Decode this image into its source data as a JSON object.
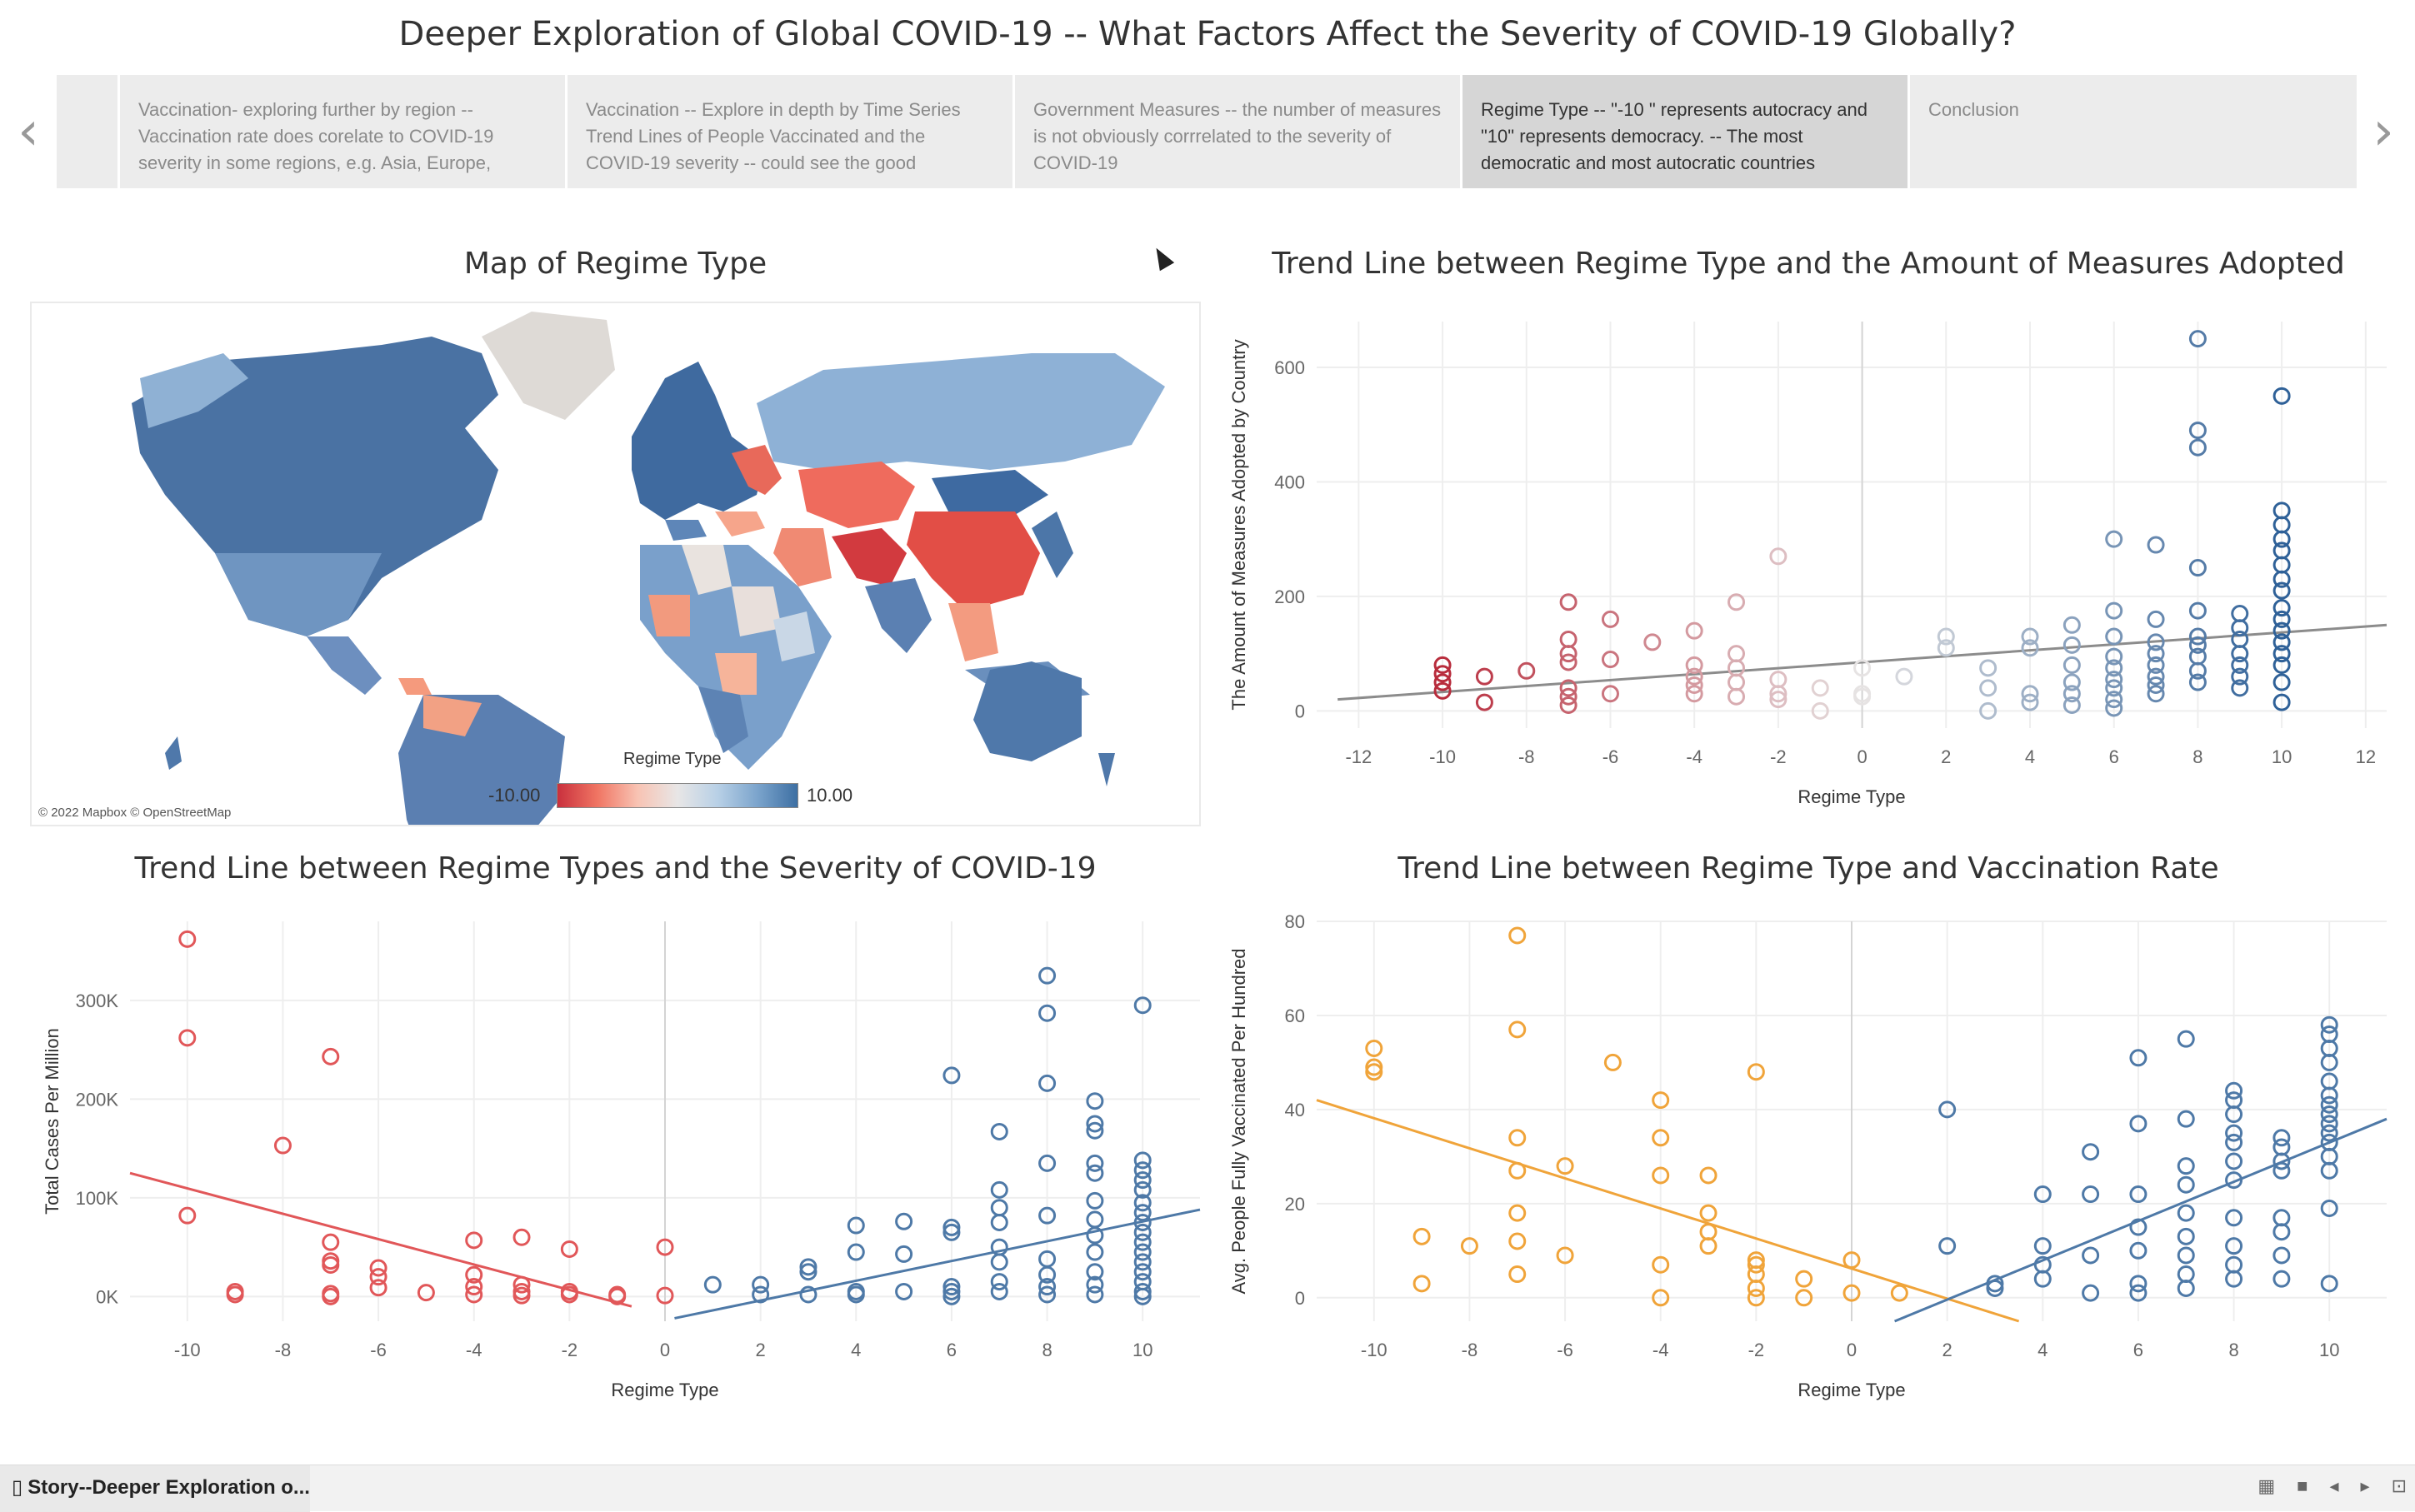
{
  "title": "Deeper Exploration of Global COVID-19 -- What Factors Affect the Severity of COVID-19 Globally?",
  "story": {
    "prev_icon": "chevron-left-icon",
    "next_icon": "chevron-right-icon",
    "prev_glyph": "‹",
    "next_glyph": "›",
    "points": [
      {
        "text": ""
      },
      {
        "text": "Vaccination- exploring further by region -- Vaccination rate does corelate to COVID-19 severity in some regions, e.g. Asia, Europe,"
      },
      {
        "text": "Vaccination -- Explore in depth by Time Series Trend Lines of People Vaccinated and the COVID-19 severity -- could see the good"
      },
      {
        "text": "Government Measures -- the number of measures is not obviously corrrelated to the severity of COVID-19"
      },
      {
        "text": "Regime Type -- \"-10 \" represents autocracy and \"10\" represents democracy. -- The most democratic and most autocratic countries"
      },
      {
        "text": "Conclusion"
      }
    ],
    "active_index": 4
  },
  "map": {
    "title": "Map of Regime Type",
    "credit": "© 2022 Mapbox © OpenStreetMap",
    "legend_title": "Regime Type",
    "legend_min": "-10.00",
    "legend_max": "10.00",
    "colors": {
      "low": "#c9303d",
      "mid": "#e8e6e6",
      "high": "#3d6fa3"
    }
  },
  "colors": {
    "blue": "#4e79a7",
    "red": "#e15759",
    "dark_red": "#b82c3c",
    "orange": "#f0a43a",
    "grid": "#ececec",
    "trend_gray": "#8c8c8c"
  },
  "bottom": {
    "tab_label": "Story--Deeper Exploration o...",
    "tab_icon": "book-icon"
  },
  "chart_data": [
    {
      "type": "scatter",
      "title": "Trend Line between Regime Type and the Amount of Measures Adopted",
      "xlabel": "Regime Type",
      "ylabel": "The Amount of Measures Adopted by Country",
      "xlim": [
        -13,
        12.5
      ],
      "ylim": [
        -30,
        680
      ],
      "xticks": [
        -12,
        -10,
        -8,
        -6,
        -4,
        -2,
        0,
        2,
        4,
        6,
        8,
        10,
        12
      ],
      "yticks": [
        0,
        200,
        400,
        600
      ],
      "ytick_labels": [
        "0",
        "200",
        "400",
        "600"
      ],
      "color_mode": "diverging",
      "trend": [
        {
          "x1": -12.5,
          "y1": 20,
          "x2": 12.5,
          "y2": 150,
          "color": "#8c8c8c"
        }
      ],
      "points": [
        [
          -10,
          80
        ],
        [
          -10,
          65
        ],
        [
          -10,
          50
        ],
        [
          -10,
          35
        ],
        [
          -9,
          60
        ],
        [
          -9,
          15
        ],
        [
          -8,
          70
        ],
        [
          -7,
          190
        ],
        [
          -7,
          125
        ],
        [
          -7,
          100
        ],
        [
          -7,
          85
        ],
        [
          -7,
          40
        ],
        [
          -7,
          25
        ],
        [
          -7,
          10
        ],
        [
          -6,
          160
        ],
        [
          -6,
          90
        ],
        [
          -6,
          30
        ],
        [
          -5,
          120
        ],
        [
          -4,
          140
        ],
        [
          -4,
          80
        ],
        [
          -4,
          60
        ],
        [
          -4,
          45
        ],
        [
          -4,
          30
        ],
        [
          -3,
          190
        ],
        [
          -3,
          100
        ],
        [
          -3,
          75
        ],
        [
          -3,
          50
        ],
        [
          -3,
          25
        ],
        [
          -2,
          270
        ],
        [
          -2,
          55
        ],
        [
          -2,
          30
        ],
        [
          -2,
          20
        ],
        [
          -1,
          40
        ],
        [
          -1,
          0
        ],
        [
          0,
          75
        ],
        [
          0,
          30
        ],
        [
          0,
          25
        ],
        [
          1,
          60
        ],
        [
          2,
          130
        ],
        [
          2,
          110
        ],
        [
          3,
          75
        ],
        [
          3,
          40
        ],
        [
          3,
          0
        ],
        [
          4,
          130
        ],
        [
          4,
          110
        ],
        [
          4,
          30
        ],
        [
          4,
          15
        ],
        [
          5,
          150
        ],
        [
          5,
          115
        ],
        [
          5,
          80
        ],
        [
          5,
          50
        ],
        [
          5,
          30
        ],
        [
          5,
          10
        ],
        [
          6,
          300
        ],
        [
          6,
          175
        ],
        [
          6,
          130
        ],
        [
          6,
          95
        ],
        [
          6,
          75
        ],
        [
          6,
          55
        ],
        [
          6,
          40
        ],
        [
          6,
          20
        ],
        [
          6,
          5
        ],
        [
          7,
          290
        ],
        [
          7,
          160
        ],
        [
          7,
          120
        ],
        [
          7,
          100
        ],
        [
          7,
          80
        ],
        [
          7,
          60
        ],
        [
          7,
          45
        ],
        [
          7,
          30
        ],
        [
          8,
          650
        ],
        [
          8,
          490
        ],
        [
          8,
          460
        ],
        [
          8,
          250
        ],
        [
          8,
          175
        ],
        [
          8,
          130
        ],
        [
          8,
          115
        ],
        [
          8,
          95
        ],
        [
          8,
          70
        ],
        [
          8,
          50
        ],
        [
          9,
          170
        ],
        [
          9,
          145
        ],
        [
          9,
          125
        ],
        [
          9,
          100
        ],
        [
          9,
          80
        ],
        [
          9,
          60
        ],
        [
          9,
          40
        ],
        [
          10,
          550
        ],
        [
          10,
          350
        ],
        [
          10,
          325
        ],
        [
          10,
          300
        ],
        [
          10,
          280
        ],
        [
          10,
          255
        ],
        [
          10,
          230
        ],
        [
          10,
          210
        ],
        [
          10,
          180
        ],
        [
          10,
          160
        ],
        [
          10,
          140
        ],
        [
          10,
          120
        ],
        [
          10,
          100
        ],
        [
          10,
          80
        ],
        [
          10,
          50
        ],
        [
          10,
          15
        ]
      ]
    },
    {
      "type": "scatter",
      "title": "Trend Line between Regime Types and the Severity of COVID-19",
      "xlabel": "Regime Type",
      "ylabel": "Total Cases Per Million",
      "xlim": [
        -11.2,
        11.2
      ],
      "ylim": [
        -25000,
        380000
      ],
      "xticks": [
        -10,
        -8,
        -6,
        -4,
        -2,
        0,
        2,
        4,
        6,
        8,
        10
      ],
      "yticks": [
        0,
        100000,
        200000,
        300000
      ],
      "ytick_labels": [
        "0K",
        "100K",
        "200K",
        "300K"
      ],
      "color_mode": "split",
      "trend": [
        {
          "x1": -11.2,
          "y1": 125000,
          "x2": -0.7,
          "y2": -10000,
          "color": "#e15759"
        },
        {
          "x1": 0.2,
          "y1": -22000,
          "x2": 11.2,
          "y2": 88000,
          "color": "#4e79a7"
        }
      ],
      "points": [
        [
          -10,
          362000
        ],
        [
          -10,
          262000
        ],
        [
          -10,
          82000
        ],
        [
          -9,
          5000
        ],
        [
          -9,
          2000
        ],
        [
          -8,
          153000
        ],
        [
          -7,
          243000
        ],
        [
          -7,
          55000
        ],
        [
          -7,
          36000
        ],
        [
          -7,
          32000
        ],
        [
          -7,
          3000
        ],
        [
          -7,
          0
        ],
        [
          -6,
          29000
        ],
        [
          -6,
          20000
        ],
        [
          -6,
          9000
        ],
        [
          -5,
          4000
        ],
        [
          -4,
          57000
        ],
        [
          -4,
          22000
        ],
        [
          -4,
          10000
        ],
        [
          -4,
          2000
        ],
        [
          -3,
          60000
        ],
        [
          -3,
          12000
        ],
        [
          -3,
          5000
        ],
        [
          -3,
          1000
        ],
        [
          -2,
          48000
        ],
        [
          -2,
          5000
        ],
        [
          -2,
          2000
        ],
        [
          -1,
          2000
        ],
        [
          -1,
          0
        ],
        [
          0,
          50000
        ],
        [
          0,
          1000
        ],
        [
          1,
          12000
        ],
        [
          2,
          12000
        ],
        [
          2,
          2000
        ],
        [
          3,
          30000
        ],
        [
          3,
          25000
        ],
        [
          3,
          2000
        ],
        [
          4,
          72000
        ],
        [
          4,
          45000
        ],
        [
          4,
          5000
        ],
        [
          4,
          2000
        ],
        [
          5,
          76000
        ],
        [
          5,
          43000
        ],
        [
          5,
          5000
        ],
        [
          6,
          224000
        ],
        [
          6,
          70000
        ],
        [
          6,
          65000
        ],
        [
          6,
          10000
        ],
        [
          6,
          5000
        ],
        [
          6,
          0
        ],
        [
          7,
          167000
        ],
        [
          7,
          108000
        ],
        [
          7,
          90000
        ],
        [
          7,
          75000
        ],
        [
          7,
          50000
        ],
        [
          7,
          35000
        ],
        [
          7,
          15000
        ],
        [
          7,
          5000
        ],
        [
          8,
          325000
        ],
        [
          8,
          287000
        ],
        [
          8,
          216000
        ],
        [
          8,
          135000
        ],
        [
          8,
          82000
        ],
        [
          8,
          38000
        ],
        [
          8,
          22000
        ],
        [
          8,
          10000
        ],
        [
          8,
          2000
        ],
        [
          9,
          198000
        ],
        [
          9,
          175000
        ],
        [
          9,
          168000
        ],
        [
          9,
          135000
        ],
        [
          9,
          125000
        ],
        [
          9,
          97000
        ],
        [
          9,
          78000
        ],
        [
          9,
          62000
        ],
        [
          9,
          45000
        ],
        [
          9,
          25000
        ],
        [
          9,
          12000
        ],
        [
          9,
          2000
        ],
        [
          10,
          295000
        ],
        [
          10,
          138000
        ],
        [
          10,
          128000
        ],
        [
          10,
          118000
        ],
        [
          10,
          108000
        ],
        [
          10,
          95000
        ],
        [
          10,
          85000
        ],
        [
          10,
          75000
        ],
        [
          10,
          65000
        ],
        [
          10,
          55000
        ],
        [
          10,
          45000
        ],
        [
          10,
          35000
        ],
        [
          10,
          25000
        ],
        [
          10,
          15000
        ],
        [
          10,
          5000
        ],
        [
          10,
          0
        ]
      ]
    },
    {
      "type": "scatter",
      "title": "Trend Line between Regime Type and Vaccination Rate",
      "xlabel": "Regime Type",
      "ylabel": "Avg. People Fully Vaccinated Per Hundred",
      "xlim": [
        -11.2,
        11.2
      ],
      "ylim": [
        -5,
        80
      ],
      "xticks": [
        -10,
        -8,
        -6,
        -4,
        -2,
        0,
        2,
        4,
        6,
        8,
        10
      ],
      "yticks": [
        0,
        20,
        40,
        60,
        80
      ],
      "ytick_labels": [
        "0",
        "20",
        "40",
        "60",
        "80"
      ],
      "color_mode": "split_orange",
      "trend": [
        {
          "x1": -11.2,
          "y1": 42,
          "x2": 3.5,
          "y2": -5,
          "color": "#f0a43a"
        },
        {
          "x1": 0.9,
          "y1": -5,
          "x2": 11.2,
          "y2": 38,
          "color": "#4e79a7"
        }
      ],
      "points": [
        [
          -10,
          53
        ],
        [
          -10,
          49
        ],
        [
          -10,
          48
        ],
        [
          -9,
          13
        ],
        [
          -9,
          3
        ],
        [
          -8,
          11
        ],
        [
          -7,
          77
        ],
        [
          -7,
          57
        ],
        [
          -7,
          34
        ],
        [
          -7,
          27
        ],
        [
          -7,
          18
        ],
        [
          -7,
          12
        ],
        [
          -7,
          5
        ],
        [
          -6,
          28
        ],
        [
          -6,
          9
        ],
        [
          -5,
          50
        ],
        [
          -4,
          42
        ],
        [
          -4,
          34
        ],
        [
          -4,
          26
        ],
        [
          -4,
          7
        ],
        [
          -4,
          0
        ],
        [
          -3,
          26
        ],
        [
          -3,
          18
        ],
        [
          -3,
          14
        ],
        [
          -3,
          11
        ],
        [
          -2,
          48
        ],
        [
          -2,
          8
        ],
        [
          -2,
          7
        ],
        [
          -2,
          5
        ],
        [
          -2,
          2
        ],
        [
          -2,
          0
        ],
        [
          -1,
          4
        ],
        [
          -1,
          0
        ],
        [
          0,
          8
        ],
        [
          0,
          1
        ],
        [
          1,
          1
        ],
        [
          2,
          40
        ],
        [
          2,
          11
        ],
        [
          3,
          3
        ],
        [
          3,
          2
        ],
        [
          4,
          22
        ],
        [
          4,
          11
        ],
        [
          4,
          7
        ],
        [
          4,
          4
        ],
        [
          5,
          31
        ],
        [
          5,
          22
        ],
        [
          5,
          9
        ],
        [
          5,
          1
        ],
        [
          6,
          51
        ],
        [
          6,
          37
        ],
        [
          6,
          22
        ],
        [
          6,
          15
        ],
        [
          6,
          10
        ],
        [
          6,
          3
        ],
        [
          6,
          1
        ],
        [
          7,
          55
        ],
        [
          7,
          38
        ],
        [
          7,
          28
        ],
        [
          7,
          24
        ],
        [
          7,
          18
        ],
        [
          7,
          13
        ],
        [
          7,
          9
        ],
        [
          7,
          5
        ],
        [
          7,
          2
        ],
        [
          8,
          44
        ],
        [
          8,
          42
        ],
        [
          8,
          39
        ],
        [
          8,
          35
        ],
        [
          8,
          33
        ],
        [
          8,
          29
        ],
        [
          8,
          25
        ],
        [
          8,
          17
        ],
        [
          8,
          11
        ],
        [
          8,
          7
        ],
        [
          8,
          4
        ],
        [
          9,
          34
        ],
        [
          9,
          32
        ],
        [
          9,
          29
        ],
        [
          9,
          27
        ],
        [
          9,
          17
        ],
        [
          9,
          14
        ],
        [
          9,
          9
        ],
        [
          9,
          4
        ],
        [
          10,
          58
        ],
        [
          10,
          56
        ],
        [
          10,
          53
        ],
        [
          10,
          50
        ],
        [
          10,
          46
        ],
        [
          10,
          43
        ],
        [
          10,
          41
        ],
        [
          10,
          39
        ],
        [
          10,
          37
        ],
        [
          10,
          35
        ],
        [
          10,
          33
        ],
        [
          10,
          30
        ],
        [
          10,
          27
        ],
        [
          10,
          19
        ],
        [
          10,
          3
        ]
      ]
    }
  ]
}
